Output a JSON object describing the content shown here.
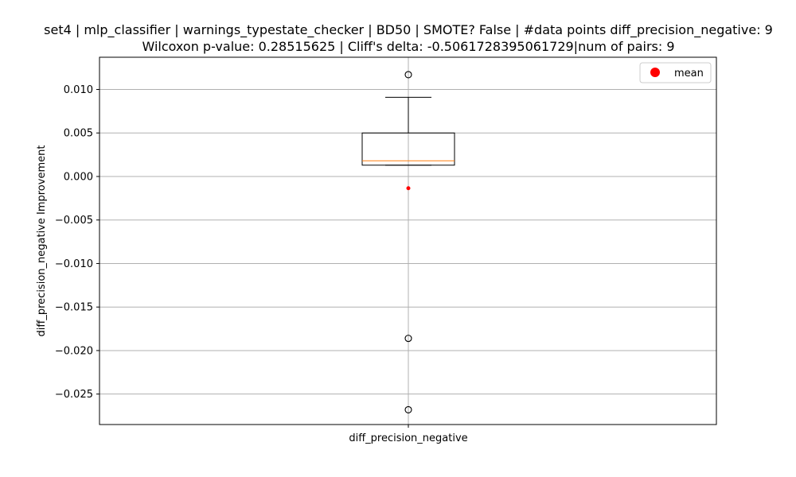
{
  "chart_data": {
    "type": "box",
    "title": "set4 | mlp_classifier | warnings_typestate_checker | BD50 | SMOTE? False | #data points diff_precision_negative: 9",
    "subtitle": "Wilcoxon p-value: 0.28515625 | Cliff's delta: -0.5061728395061729|num of pairs: 9",
    "xlabel": "",
    "ylabel": "diff_precision_negative Improvement",
    "categories": [
      "diff_precision_negative"
    ],
    "ylim": [
      -0.0285,
      0.0137
    ],
    "yticks": [
      0.01,
      0.005,
      0.0,
      -0.005,
      -0.01,
      -0.015,
      -0.02,
      -0.025
    ],
    "ytick_labels": [
      "0.010",
      "0.005",
      "0.000",
      "−0.005",
      "−0.010",
      "−0.015",
      "−0.020",
      "−0.025"
    ],
    "grid": true,
    "legend": {
      "position": "upper-right",
      "entries": [
        {
          "label": "mean",
          "color": "#ff0000"
        }
      ]
    },
    "box": {
      "q1": 0.0013,
      "median": 0.0018,
      "q3": 0.005,
      "whisker_low": 0.0013,
      "whisker_high": 0.0091,
      "mean": -0.00135,
      "outliers": [
        0.0117,
        -0.0186,
        -0.0268
      ]
    },
    "colors": {
      "box": "#000000",
      "median": "#ff7f0e",
      "mean": "#ff0000",
      "grid": "#b0b0b0"
    }
  }
}
